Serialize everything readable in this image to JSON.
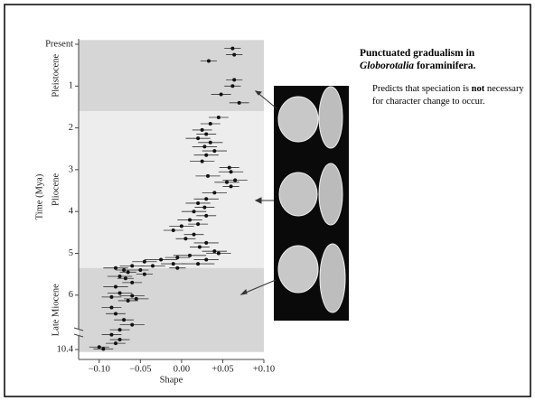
{
  "caption": {
    "title": "Punctuated gradualism in",
    "genus": "Globorotalia",
    "title_end": "foraminifera.",
    "before": "Predicts that speciation is",
    "emphasis": "not",
    "after": "necessary for character change to occur."
  },
  "chart_data": {
    "type": "scatter",
    "x_label": "Shape",
    "y_label": "Time (Mya)",
    "xlim": [
      -0.125,
      0.1
    ],
    "xticks": [
      {
        "value": -0.1,
        "label": "−0.10"
      },
      {
        "value": -0.05,
        "label": "−0.05"
      },
      {
        "value": 0,
        "label": "0.00"
      },
      {
        "value": 0.05,
        "label": "+0.05"
      },
      {
        "value": 0.1,
        "label": "+0.10"
      }
    ],
    "ylim": [
      -0.1,
      10.6
    ],
    "yticks": [
      {
        "value": 0,
        "label": "Present"
      },
      1,
      2,
      3,
      4,
      5,
      6,
      10.4
    ],
    "axis_break": true,
    "epochs": [
      {
        "name": "Pleistocene",
        "start": 0,
        "end": 1.6,
        "color": "#d6d6d6"
      },
      {
        "name": "Pliocene",
        "start": 1.6,
        "end": 5.35,
        "color": "#ededed"
      },
      {
        "name": "Late Miocene",
        "start": 5.35,
        "end": 10.6,
        "color": "#d6d6d6"
      }
    ],
    "color": "#111111",
    "x": [
      0.062,
      0.064,
      0.033,
      0.064,
      0.062,
      0.048,
      0.07,
      0.045,
      0.035,
      0.025,
      0.03,
      0.02,
      0.035,
      0.028,
      0.04,
      0.03,
      0.025,
      0.058,
      0.06,
      0.032,
      0.065,
      0.055,
      0.06,
      0.04,
      0.03,
      0.02,
      0.028,
      0.015,
      0.03,
      0.01,
      0.02,
      0,
      -0.01,
      0.015,
      0.005,
      0.03,
      0.022,
      0.04,
      0.045,
      0.01,
      -0.005,
      0.03,
      -0.025,
      -0.045,
      -0.01,
      0.02,
      -0.06,
      -0.035,
      -0.005,
      -0.08,
      -0.07,
      -0.05,
      -0.065,
      -0.045,
      -0.075,
      -0.068,
      -0.06,
      -0.08,
      -0.075,
      -0.06,
      -0.085,
      -0.055,
      -0.065,
      -0.085,
      -0.08,
      -0.07,
      -0.06,
      -0.075,
      -0.085,
      -0.075,
      -0.08,
      -0.1,
      -0.095
    ],
    "values": [
      0.1,
      0.25,
      0.4,
      0.85,
      1,
      1.2,
      1.4,
      1.75,
      1.9,
      2.05,
      2.15,
      2.25,
      2.35,
      2.45,
      2.55,
      2.65,
      2.8,
      2.95,
      3.05,
      3.15,
      3.25,
      3.3,
      3.4,
      3.55,
      3.7,
      3.8,
      3.9,
      4,
      4.1,
      4.2,
      4.3,
      4.35,
      4.45,
      4.55,
      4.65,
      4.75,
      4.85,
      4.95,
      5,
      5.05,
      5.1,
      5.15,
      5.15,
      5.2,
      5.25,
      5.25,
      5.3,
      5.3,
      5.35,
      5.35,
      5.4,
      5.4,
      5.45,
      5.5,
      5.55,
      5.6,
      5.7,
      5.8,
      5.95,
      6.05,
      6.15,
      6.3,
      6.45,
      7,
      7.5,
      8,
      8.4,
      8.8,
      9.2,
      9.6,
      9.9,
      10.2,
      10.35
    ],
    "x_errors": [
      0.01,
      0.01,
      0.01,
      0.01,
      0.01,
      0.012,
      0.012,
      0.012,
      0.012,
      0.012,
      0.012,
      0.015,
      0.015,
      0.015,
      0.015,
      0.015,
      0.015,
      0.012,
      0.015,
      0.015,
      0.015,
      0.015,
      0.01,
      0.015,
      0.015,
      0.015,
      0.012,
      0.015,
      0.012,
      0.015,
      0.012,
      0.015,
      0.012,
      0.012,
      0.012,
      0.015,
      0.012,
      0.015,
      0.015,
      0.02,
      0.015,
      0.015,
      0.02,
      0.015,
      0.015,
      0.02,
      0.015,
      0.015,
      0.01,
      0.015,
      0.01,
      0.01,
      0.01,
      0.01,
      0.015,
      0.01,
      0.012,
      0.015,
      0.015,
      0.015,
      0.012,
      0.015,
      0.012,
      0.012,
      0.012,
      0.012,
      0.015,
      0.012,
      0.012,
      0.012,
      0.012,
      0.012,
      0.012
    ]
  }
}
